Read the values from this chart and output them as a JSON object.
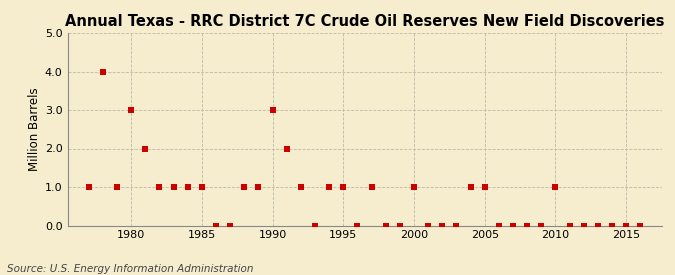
{
  "title": "Annual Texas - RRC District 7C Crude Oil Reserves New Field Discoveries",
  "ylabel": "Million Barrels",
  "source": "Source: U.S. Energy Information Administration",
  "background_color": "#f5edce",
  "years": [
    1977,
    1978,
    1979,
    1980,
    1981,
    1982,
    1983,
    1984,
    1985,
    1986,
    1987,
    1988,
    1989,
    1990,
    1991,
    1992,
    1993,
    1994,
    1995,
    1996,
    1997,
    1998,
    1999,
    2000,
    2001,
    2002,
    2003,
    2004,
    2005,
    2006,
    2007,
    2008,
    2009,
    2010,
    2011,
    2012,
    2013,
    2014,
    2015,
    2016
  ],
  "values": [
    1.0,
    4.0,
    1.0,
    3.0,
    2.0,
    1.0,
    1.0,
    1.0,
    1.0,
    0.0,
    0.0,
    1.0,
    1.0,
    3.0,
    2.0,
    1.0,
    0.0,
    1.0,
    1.0,
    0.0,
    1.0,
    0.0,
    0.0,
    1.0,
    0.0,
    0.0,
    0.0,
    1.0,
    1.0,
    0.0,
    0.0,
    0.0,
    0.0,
    1.0,
    0.0,
    0.0,
    0.0,
    0.0,
    0.0,
    0.0
  ],
  "marker_color": "#cc0000",
  "marker_size": 4,
  "ylim": [
    0,
    5.0
  ],
  "yticks": [
    0.0,
    1.0,
    2.0,
    3.0,
    4.0,
    5.0
  ],
  "xlim": [
    1975.5,
    2017.5
  ],
  "xticks": [
    1980,
    1985,
    1990,
    1995,
    2000,
    2005,
    2010,
    2015
  ],
  "grid_color": "#bbbbaa",
  "title_fontsize": 10.5,
  "axis_fontsize": 8.5,
  "tick_fontsize": 8,
  "source_fontsize": 7.5
}
